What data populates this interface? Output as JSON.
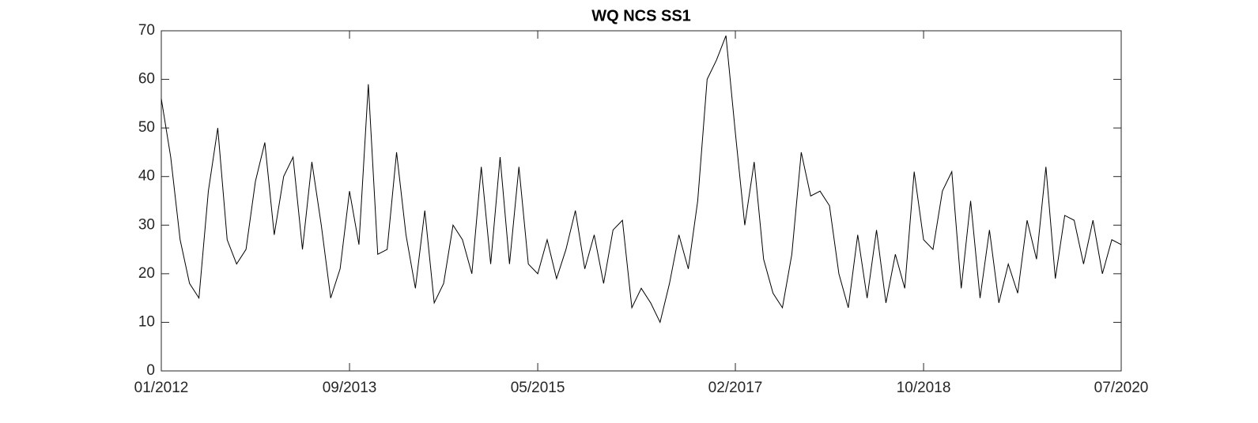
{
  "chart_data": {
    "type": "line",
    "title": "WQ NCS SS1",
    "x": [
      "2012-01",
      "2012-02",
      "2012-03",
      "2012-04",
      "2012-05",
      "2012-06",
      "2012-07",
      "2012-08",
      "2012-09",
      "2012-10",
      "2012-11",
      "2012-12",
      "2013-01",
      "2013-02",
      "2013-03",
      "2013-04",
      "2013-05",
      "2013-06",
      "2013-07",
      "2013-08",
      "2013-09",
      "2013-10",
      "2013-11",
      "2013-12",
      "2014-01",
      "2014-02",
      "2014-03",
      "2014-04",
      "2014-05",
      "2014-06",
      "2014-07",
      "2014-08",
      "2014-09",
      "2014-10",
      "2014-11",
      "2014-12",
      "2015-01",
      "2015-02",
      "2015-03",
      "2015-04",
      "2015-05",
      "2015-06",
      "2015-07",
      "2015-08",
      "2015-09",
      "2015-10",
      "2015-11",
      "2015-12",
      "2016-01",
      "2016-02",
      "2016-03",
      "2016-04",
      "2016-05",
      "2016-06",
      "2016-07",
      "2016-08",
      "2016-09",
      "2016-10",
      "2016-11",
      "2016-12",
      "2017-01",
      "2017-02",
      "2017-03",
      "2017-04",
      "2017-05",
      "2017-06",
      "2017-07",
      "2017-08",
      "2017-09",
      "2017-10",
      "2017-11",
      "2017-12",
      "2018-01",
      "2018-02",
      "2018-03",
      "2018-04",
      "2018-05",
      "2018-06",
      "2018-07",
      "2018-08",
      "2018-09",
      "2018-10",
      "2018-11",
      "2018-12",
      "2019-01",
      "2019-02",
      "2019-03",
      "2019-04",
      "2019-05",
      "2019-06",
      "2019-07",
      "2019-08",
      "2019-09",
      "2019-10",
      "2019-11",
      "2019-12",
      "2020-01",
      "2020-02",
      "2020-03",
      "2020-04",
      "2020-05",
      "2020-06",
      "2020-07"
    ],
    "series": [
      {
        "color": "#000000",
        "values": [
          56,
          44,
          27,
          18,
          15,
          37,
          50,
          27,
          22,
          25,
          39,
          47,
          28,
          40,
          44,
          25,
          43,
          30,
          15,
          21,
          37,
          26,
          59,
          24,
          25,
          45,
          28,
          17,
          33,
          14,
          18,
          30,
          27,
          20,
          42,
          22,
          44,
          22,
          42,
          22,
          20,
          27,
          19,
          25,
          33,
          21,
          28,
          18,
          29,
          31,
          13,
          17,
          14,
          10,
          18,
          28,
          21,
          35,
          60,
          64,
          69,
          49,
          30,
          43,
          23,
          16,
          13,
          24,
          45,
          36,
          37,
          34,
          20,
          13,
          28,
          15,
          29,
          14,
          24,
          17,
          41,
          27,
          25,
          37,
          41,
          17,
          35,
          15,
          29,
          14,
          22,
          16,
          31,
          23,
          42,
          19,
          32,
          31,
          22,
          31,
          20,
          27,
          26
        ]
      }
    ],
    "xlim": [
      "2012-01",
      "2020-07"
    ],
    "xticks": [
      {
        "value": "2012-01",
        "label": "01/2012"
      },
      {
        "value": "2013-09",
        "label": "09/2013"
      },
      {
        "value": "2015-05",
        "label": "05/2015"
      },
      {
        "value": "2017-02",
        "label": "02/2017"
      },
      {
        "value": "2018-10",
        "label": "10/2018"
      },
      {
        "value": "2020-07",
        "label": "07/2020"
      }
    ],
    "ylim": [
      0,
      70
    ],
    "yticks": [
      0,
      10,
      20,
      30,
      40,
      50,
      60,
      70
    ],
    "grid": false
  }
}
